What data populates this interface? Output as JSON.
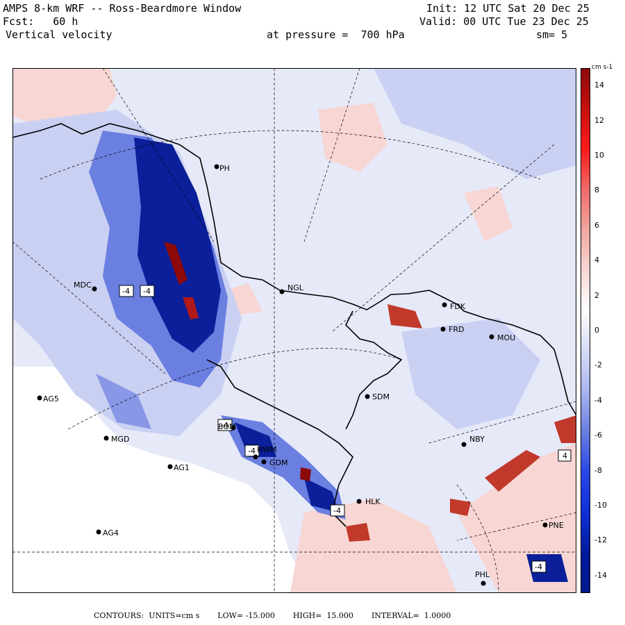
{
  "header": {
    "line1_left": "AMPS 8-km WRF -- Ross-Beardmore Window",
    "line2_left": "Fcst:   60 h",
    "line3_left": "Vertical velocity",
    "pressure": "at pressure =  700 hPa",
    "line1_right": "Init: 12 UTC Sat 20 Dec 25",
    "line2_right": "Valid: 00 UTC Tue 23 Dec 25",
    "smoothing": "sm= 5"
  },
  "colorbar": {
    "units_label": "cm s-1",
    "ticks": [
      "14",
      "12",
      "10",
      "8",
      "6",
      "4",
      "2",
      "0",
      "-2",
      "-4",
      "-6",
      "-8",
      "-10",
      "-12",
      "-14"
    ],
    "min": -15,
    "max": 15
  },
  "stations": [
    {
      "code": "MDC"
    },
    {
      "code": "NGL"
    },
    {
      "code": "FDK"
    },
    {
      "code": "FRD"
    },
    {
      "code": "MOU"
    },
    {
      "code": "AG5"
    },
    {
      "code": "MGD"
    },
    {
      "code": "AG1"
    },
    {
      "code": "AG4"
    },
    {
      "code": "SDM"
    },
    {
      "code": "NBY"
    },
    {
      "code": "HLK"
    },
    {
      "code": "PNE"
    },
    {
      "code": "PHL"
    },
    {
      "code": "PH"
    },
    {
      "code": "BOM"
    },
    {
      "code": "HWM"
    },
    {
      "code": "GDM"
    }
  ],
  "boxes": [
    "-4",
    "-4",
    "-4",
    "-4",
    "-4",
    "4",
    "-4"
  ],
  "footer": {
    "contours": "CONTOURS:  UNITS=cm s",
    "low": "LOW= -15.000",
    "high": "HIGH=  15.000",
    "interval": "INTERVAL=  1.0000"
  },
  "colors": {
    "strong_negative": "#001a8c",
    "medium_negative": "#4d63d6",
    "weak_negative": "#d6dcf5",
    "zero": "#ffffff",
    "weak_positive": "#f7d6d3",
    "medium_positive": "#e86b5c",
    "strong_positive": "#8c0a0a",
    "coast": "#000000"
  }
}
